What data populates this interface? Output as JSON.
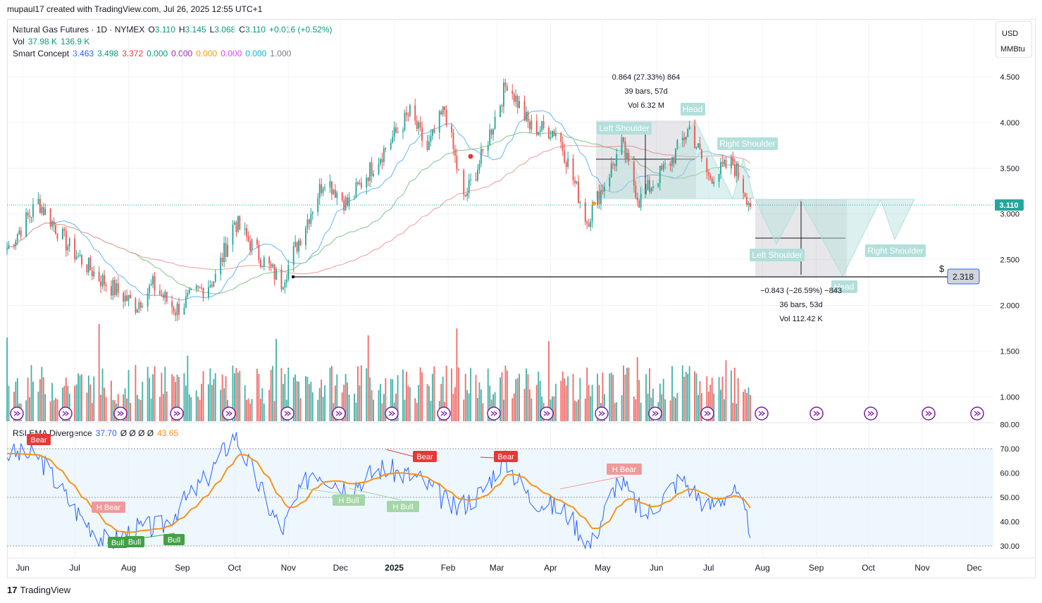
{
  "header": {
    "created_line": "mupaul17 created with TradingView.com, Jul 26, 2025 12:55 UTC+1"
  },
  "legend": {
    "symbol": "Natural Gas Futures · 1D · NYMEX",
    "o_label": "O",
    "o": "3.110",
    "h_label": "H",
    "h": "3.145",
    "l_label": "L",
    "l": "3.068",
    "c_label": "C",
    "c": "3.110",
    "change": "+0.016 (+0.52%)",
    "vol_label": "Vol",
    "vol1": "37.98 K",
    "vol2": "136.9 K",
    "sc_label": "Smart Concept",
    "sc_values": [
      "3.463",
      "3.498",
      "3.372",
      "0.000",
      "0.000",
      "0.000",
      "0.000",
      "0.000",
      "1.000"
    ],
    "rsi_label": "RSI EMA Divergence",
    "rsi_value": "37.70",
    "rsi_zeros": "Ø Ø Ø Ø",
    "rsi_ema": "43.65"
  },
  "unit": {
    "currency": "USD",
    "unit": "MMBtu"
  },
  "price_axis": {
    "ticks": [
      "4.500",
      "4.000",
      "3.500",
      "3.000",
      "2.500",
      "2.000",
      "1.500",
      "1.000"
    ],
    "current_price": "3.110",
    "target_price": "2.318"
  },
  "rsi_axis": {
    "ticks": [
      "80.00",
      "70.00",
      "60.00",
      "50.00",
      "40.00",
      "30.00"
    ]
  },
  "time_axis": {
    "labels": [
      "Jun",
      "Jul",
      "Aug",
      "Sep",
      "Oct",
      "Nov",
      "Dec",
      "2025",
      "Feb",
      "Mar",
      "Apr",
      "May",
      "Jun",
      "Jul",
      "Aug",
      "Sep",
      "Oct",
      "Nov",
      "Dec"
    ]
  },
  "measure_up": {
    "line1": "0.864 (27.33%) 864",
    "line2": "39 bars, 57d",
    "line3": "Vol 6.32 M"
  },
  "measure_down": {
    "line1": "−0.843 (−26.59%) −843",
    "line2": "36 bars, 53d",
    "line3": "Vol 112.42 K"
  },
  "pattern_labels": {
    "left_shoulder": "Left Shoulder",
    "head": "Head",
    "right_shoulder": "Right Shoulder",
    "proj_left_shoulder": "Left Shoulder",
    "proj_head": "Head",
    "proj_right_shoulder": "Right Shoulder",
    "dollar": "$"
  },
  "rsi_signals": {
    "bear1": "Bear",
    "bear2": "Bear",
    "bear3": "Bear",
    "hbear1": "H Bear",
    "hbear2": "H Bear",
    "hbull1": "H Bull",
    "hbull2": "H Bull",
    "bull1": "Bull",
    "bull2": "Bull",
    "bull3": "Bull"
  },
  "footer": {
    "logo": "17",
    "brand": "TradingView"
  },
  "colors": {
    "up": "#26a69a",
    "down": "#ef5350",
    "rsi": "#2962ff",
    "rsi_ema": "#f7931a",
    "bull": "#43a047",
    "bear": "#e53935",
    "ma_blue": "#64b5f6",
    "ma_green": "#81c784",
    "ma_red": "#ef9a9a"
  },
  "chart_data": {
    "type": "candlestick",
    "title": "Natural Gas Futures · 1D · NYMEX",
    "ylim": [
      1.75,
      4.95
    ],
    "x_range": [
      "2024-05-23",
      "2025-12-12"
    ],
    "last_candle": "2025-07-25",
    "close_path": [
      {
        "date": "2024-05-23",
        "close": 2.62
      },
      {
        "date": "2024-06-10",
        "close": 3.13
      },
      {
        "date": "2024-06-28",
        "close": 2.63
      },
      {
        "date": "2024-07-15",
        "close": 2.3
      },
      {
        "date": "2024-08-05",
        "close": 2.0
      },
      {
        "date": "2024-08-15",
        "close": 2.22
      },
      {
        "date": "2024-08-28",
        "close": 1.95
      },
      {
        "date": "2024-09-20",
        "close": 2.3
      },
      {
        "date": "2024-10-01",
        "close": 2.92
      },
      {
        "date": "2024-10-15",
        "close": 2.55
      },
      {
        "date": "2024-10-28",
        "close": 2.25
      },
      {
        "date": "2024-11-10",
        "close": 2.85
      },
      {
        "date": "2024-11-22",
        "close": 3.4
      },
      {
        "date": "2024-12-05",
        "close": 3.1
      },
      {
        "date": "2024-12-15",
        "close": 3.4
      },
      {
        "date": "2025-01-10",
        "close": 4.1
      },
      {
        "date": "2025-01-20",
        "close": 3.7
      },
      {
        "date": "2025-01-30",
        "close": 4.15
      },
      {
        "date": "2025-02-10",
        "close": 3.15
      },
      {
        "date": "2025-02-20",
        "close": 3.6
      },
      {
        "date": "2025-03-07",
        "close": 4.45
      },
      {
        "date": "2025-03-20",
        "close": 3.95
      },
      {
        "date": "2025-04-05",
        "close": 3.9
      },
      {
        "date": "2025-04-22",
        "close": 2.92
      },
      {
        "date": "2025-05-12",
        "close": 3.75
      },
      {
        "date": "2025-05-22",
        "close": 3.15
      },
      {
        "date": "2025-06-10",
        "close": 3.6
      },
      {
        "date": "2025-06-20",
        "close": 3.95
      },
      {
        "date": "2025-07-01",
        "close": 3.4
      },
      {
        "date": "2025-07-15",
        "close": 3.55
      },
      {
        "date": "2025-07-25",
        "close": 3.11
      }
    ],
    "horizontal_target": 2.318,
    "measure_up": {
      "from": 3.16,
      "to": 4.03,
      "bars": 39,
      "days": 57
    },
    "measure_down": {
      "from": 3.16,
      "to": 2.318,
      "bars": 36,
      "days": 53
    },
    "rsi": {
      "ylim": [
        28,
        82
      ],
      "bands": [
        30,
        50,
        70
      ],
      "last": 37.7,
      "ema_last": 43.65,
      "path": [
        {
          "date": "2024-05-23",
          "rsi": 68
        },
        {
          "date": "2024-06-10",
          "rsi": 67
        },
        {
          "date": "2024-07-01",
          "rsi": 45
        },
        {
          "date": "2024-07-20",
          "rsi": 31
        },
        {
          "date": "2024-08-05",
          "rsi": 37
        },
        {
          "date": "2024-08-20",
          "rsi": 38
        },
        {
          "date": "2024-09-15",
          "rsi": 58
        },
        {
          "date": "2024-10-01",
          "rsi": 76
        },
        {
          "date": "2024-10-15",
          "rsi": 55
        },
        {
          "date": "2024-10-28",
          "rsi": 36
        },
        {
          "date": "2024-11-15",
          "rsi": 62
        },
        {
          "date": "2024-12-05",
          "rsi": 54
        },
        {
          "date": "2024-12-25",
          "rsi": 62
        },
        {
          "date": "2025-01-15",
          "rsi": 58
        },
        {
          "date": "2025-02-05",
          "rsi": 45
        },
        {
          "date": "2025-02-20",
          "rsi": 52
        },
        {
          "date": "2025-03-05",
          "rsi": 66
        },
        {
          "date": "2025-03-20",
          "rsi": 50
        },
        {
          "date": "2025-04-10",
          "rsi": 44
        },
        {
          "date": "2025-04-24",
          "rsi": 30
        },
        {
          "date": "2025-05-10",
          "rsi": 58
        },
        {
          "date": "2025-05-25",
          "rsi": 42
        },
        {
          "date": "2025-06-15",
          "rsi": 58
        },
        {
          "date": "2025-07-01",
          "rsi": 46
        },
        {
          "date": "2025-07-15",
          "rsi": 53
        },
        {
          "date": "2025-07-25",
          "rsi": 37.7
        }
      ]
    }
  }
}
